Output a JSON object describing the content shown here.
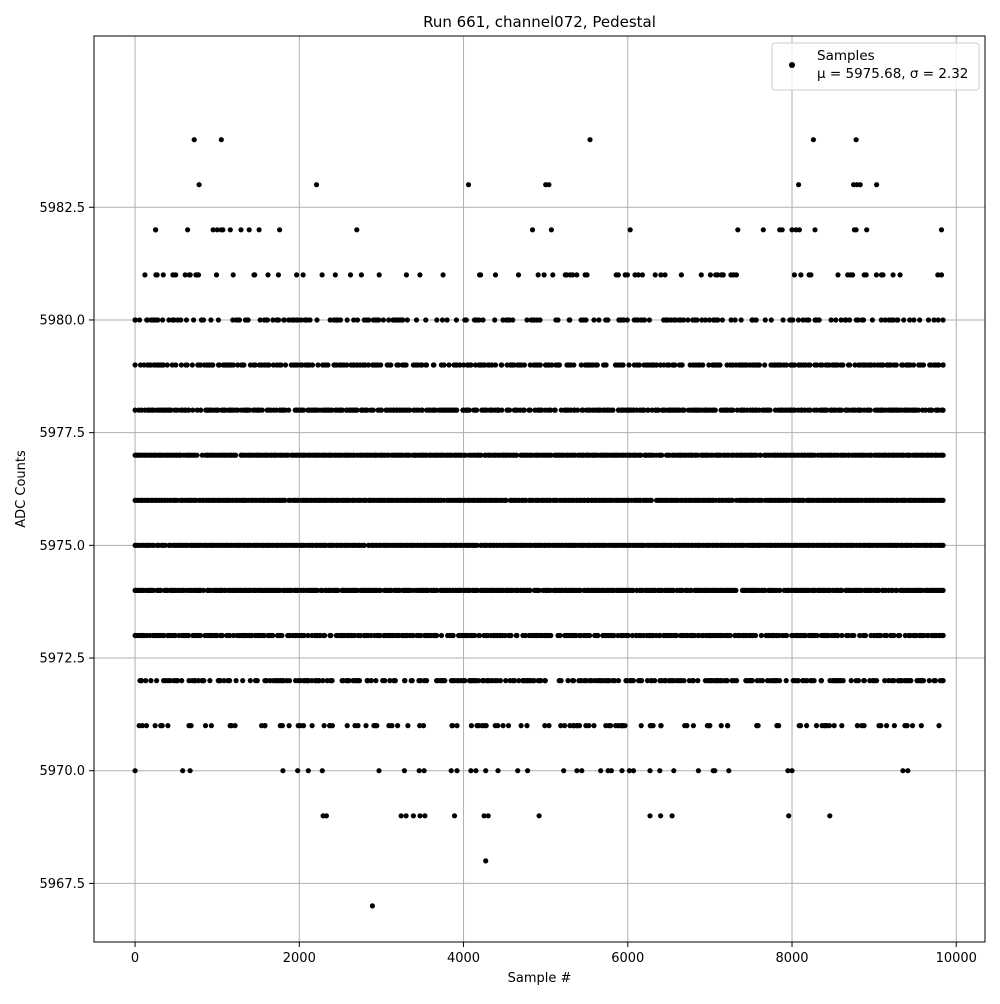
{
  "chart_data": {
    "type": "scatter",
    "title": "Run 661, channel072, Pedestal",
    "xlabel": "Sample #",
    "ylabel": "ADC Counts",
    "xlim": [
      -500,
      10350
    ],
    "ylim": [
      5966.2,
      5986.3
    ],
    "xticks": [
      0,
      2000,
      4000,
      6000,
      8000,
      10000
    ],
    "yticks": [
      5967.5,
      5970.0,
      5972.5,
      5975.0,
      5977.5,
      5980.0,
      5982.5
    ],
    "xtick_labels": [
      "0",
      "2000",
      "4000",
      "6000",
      "8000",
      "10000"
    ],
    "ytick_labels": [
      "5967.5",
      "5970.0",
      "5972.5",
      "5975.0",
      "5977.5",
      "5980.0",
      "5982.5"
    ],
    "grid": true,
    "legend_position": "top-right",
    "marker_color": "#000000",
    "series": [
      {
        "name": "Samples",
        "stats_label": "μ = 5975.68, σ = 2.32",
        "n_samples": 9840,
        "levels": [
          {
            "y": 5974,
            "x": [
              0,
              9840
            ]
          },
          {
            "y": 5975,
            "x": [
              0,
              9840
            ]
          },
          {
            "y": 5976,
            "x": [
              0,
              9840
            ]
          },
          {
            "y": 5977,
            "x": [
              0,
              9840
            ]
          },
          {
            "y": 5973,
            "x": [
              0,
              9840
            ]
          },
          {
            "y": 5978,
            "x": [
              0,
              9840
            ]
          },
          {
            "y": 5972,
            "x": [
              60,
              9840
            ]
          },
          {
            "y": 5979,
            "x": [
              0,
              9840
            ]
          },
          {
            "y": 5980,
            "x": [
              0,
              9840
            ]
          },
          {
            "y": 5971,
            "x": [
              50,
              9790
            ]
          },
          {
            "y": 5981,
            "x": [
              120,
              9820
            ]
          },
          {
            "y": 5982,
            "x": [
              250,
              250,
              640,
              950,
              1000,
              1050,
              1070,
              1160,
              1290,
              1390,
              1510,
              1760,
              2700,
              4840,
              5070,
              6030,
              7340,
              7650,
              7850,
              7880,
              8000,
              8050,
              8090,
              8280,
              8760,
              8780,
              8910,
              9820
            ]
          },
          {
            "y": 5983,
            "x": [
              780,
              2210,
              4060,
              5000,
              5040,
              8080,
              8750,
              8790,
              8830,
              9030
            ]
          },
          {
            "y": 5984,
            "x": [
              720,
              1050,
              5540,
              8260,
              8780
            ]
          },
          {
            "y": 5970,
            "x": [
              0,
              580,
              670,
              1800,
              1980,
              2110,
              2280,
              2970,
              3280,
              3460,
              3520,
              3850,
              3920,
              4090,
              4150,
              4270,
              4420,
              4660,
              4780,
              5220,
              5380,
              5440,
              5670,
              5760,
              5800,
              5930,
              6020,
              6070,
              6270,
              6390,
              6560,
              6860,
              7040,
              7060,
              7230,
              7950,
              8000,
              9350,
              9410
            ]
          },
          {
            "y": 5969,
            "x": [
              2290,
              2330,
              3240,
              3300,
              3390,
              3470,
              3530,
              3890,
              4250,
              4300,
              4920,
              6270,
              6400,
              6540,
              7960,
              8460
            ]
          },
          {
            "y": 5968,
            "x": [
              4270
            ]
          },
          {
            "y": 5967,
            "x": [
              2890
            ]
          }
        ]
      }
    ]
  }
}
